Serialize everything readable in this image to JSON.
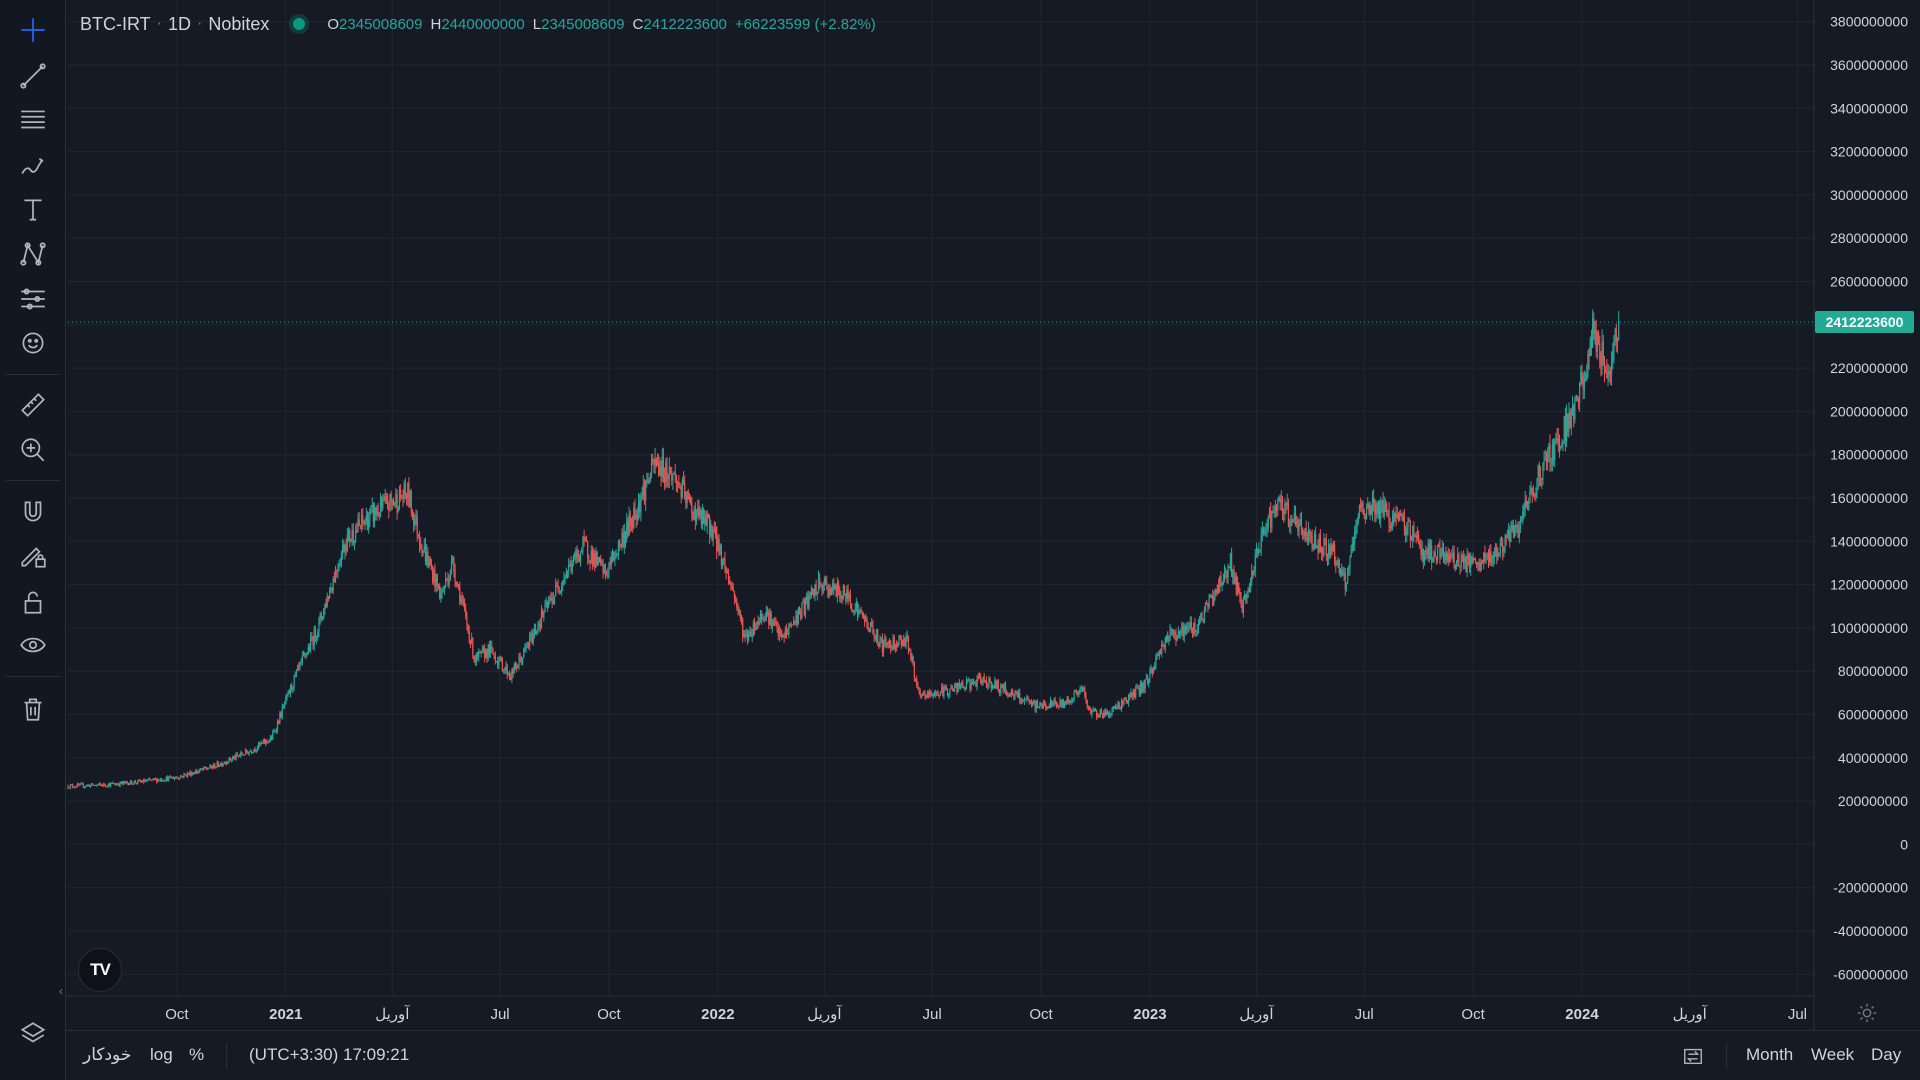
{
  "symbol": "BTC-IRT",
  "interval": "1D",
  "exchange": "Nobitex",
  "ohlc": {
    "o_label": "O",
    "o": "2345008609",
    "h_label": "H",
    "h": "2440000000",
    "l_label": "L",
    "l": "2345008609",
    "c_label": "C",
    "c": "2412223600",
    "change": "+66223599 (+2.82%)"
  },
  "last_price": "2412223600",
  "colors": {
    "background": "#161a25",
    "up": "#26a69a",
    "down": "#ef5350",
    "accent": "#2962ff",
    "price_tag": "#22ab94"
  },
  "toolbar": {
    "tools": [
      "crosshair-icon",
      "trend-line-icon",
      "fib-retracement-icon",
      "brush-icon",
      "text-icon",
      "pattern-icon",
      "prediction-icon",
      "emoji-icon",
      "ruler-icon",
      "zoom-in-icon",
      "magnet-icon",
      "lock-drawing-icon",
      "lock-icon",
      "eye-icon",
      "trash-icon",
      "layers-icon"
    ],
    "active": "crosshair-icon"
  },
  "bottom_bar": {
    "auto": "خودکار",
    "log": "log",
    "percent": "%",
    "time": "(UTC+3:30) 17:09:21",
    "ranges": [
      "Month",
      "Week",
      "Day"
    ]
  },
  "logo_text": "TV",
  "chart_data": {
    "type": "candlestick",
    "symbol": "BTC-IRT",
    "interval": "1D",
    "y_axis": {
      "ticks": [
        "3800000000",
        "3600000000",
        "3400000000",
        "3200000000",
        "3000000000",
        "2800000000",
        "2600000000",
        "2400000000",
        "2200000000",
        "2000000000",
        "1800000000",
        "1600000000",
        "1400000000",
        "1200000000",
        "1000000000",
        "800000000",
        "600000000",
        "400000000",
        "200000000",
        "0",
        "-200000000",
        "-400000000",
        "-600000000"
      ],
      "tick_values": [
        3800000000,
        3600000000,
        3400000000,
        3200000000,
        3000000000,
        2800000000,
        2600000000,
        2400000000,
        2200000000,
        2000000000,
        1800000000,
        1600000000,
        1400000000,
        1200000000,
        1000000000,
        800000000,
        600000000,
        400000000,
        200000000,
        0,
        -200000000,
        -400000000,
        -600000000
      ],
      "range": [
        -700000000,
        3900000000
      ]
    },
    "x_axis": {
      "tick_labels": [
        "Oct",
        "2021",
        "آوریل",
        "Jul",
        "Oct",
        "2022",
        "آوریل",
        "Jul",
        "Oct",
        "2023",
        "آوریل",
        "Jul",
        "Oct",
        "2024",
        "آوریل",
        "Jul"
      ],
      "tick_dates": [
        "2020-10-01",
        "2021-01-01",
        "2021-04-01",
        "2021-07-01",
        "2021-10-01",
        "2022-01-01",
        "2022-04-01",
        "2022-07-01",
        "2022-10-01",
        "2023-01-01",
        "2023-04-01",
        "2023-07-01",
        "2023-10-01",
        "2024-01-01",
        "2024-04-01",
        "2024-07-01"
      ],
      "bold_labels": [
        "2021",
        "2022",
        "2023",
        "2024"
      ],
      "range": [
        "2020-07-01",
        "2024-07-15"
      ]
    },
    "price_trajectory": {
      "dates": [
        "2020-07-01",
        "2020-08-01",
        "2020-09-01",
        "2020-10-01",
        "2020-11-01",
        "2020-12-01",
        "2020-12-20",
        "2021-01-08",
        "2021-01-28",
        "2021-02-20",
        "2021-03-10",
        "2021-03-25",
        "2021-04-14",
        "2021-04-25",
        "2021-05-12",
        "2021-05-22",
        "2021-06-10",
        "2021-06-22",
        "2021-07-10",
        "2021-07-20",
        "2021-08-05",
        "2021-08-25",
        "2021-09-10",
        "2021-09-28",
        "2021-10-20",
        "2021-11-09",
        "2021-11-25",
        "2021-12-10",
        "2021-12-28",
        "2022-01-15",
        "2022-01-24",
        "2022-02-10",
        "2022-02-24",
        "2022-03-10",
        "2022-03-28",
        "2022-04-20",
        "2022-05-10",
        "2022-05-20",
        "2022-06-10",
        "2022-06-20",
        "2022-07-20",
        "2022-08-14",
        "2022-09-05",
        "2022-09-25",
        "2022-10-20",
        "2022-11-05",
        "2022-11-10",
        "2022-11-25",
        "2022-12-15",
        "2022-12-28",
        "2023-01-15",
        "2023-02-10",
        "2023-03-10",
        "2023-03-20",
        "2023-04-10",
        "2023-04-22",
        "2023-05-15",
        "2023-06-05",
        "2023-06-15",
        "2023-06-28",
        "2023-07-10",
        "2023-08-10",
        "2023-08-20",
        "2023-09-10",
        "2023-10-05",
        "2023-10-20",
        "2023-10-30",
        "2023-11-10",
        "2023-11-25",
        "2023-12-05",
        "2023-12-20",
        "2024-01-05",
        "2024-01-10",
        "2024-01-15",
        "2024-01-23",
        "2024-02-01"
      ],
      "closes": [
        270000000,
        275000000,
        290000000,
        310000000,
        360000000,
        430000000,
        490000000,
        760000000,
        1000000000,
        1400000000,
        1500000000,
        1560000000,
        1620000000,
        1400000000,
        1150000000,
        1300000000,
        850000000,
        900000000,
        780000000,
        870000000,
        1050000000,
        1250000000,
        1380000000,
        1250000000,
        1500000000,
        1760000000,
        1700000000,
        1550000000,
        1450000000,
        1150000000,
        950000000,
        1080000000,
        950000000,
        1060000000,
        1200000000,
        1150000000,
        1000000000,
        920000000,
        950000000,
        680000000,
        720000000,
        760000000,
        700000000,
        640000000,
        650000000,
        720000000,
        620000000,
        600000000,
        680000000,
        740000000,
        960000000,
        1010000000,
        1300000000,
        1080000000,
        1500000000,
        1560000000,
        1420000000,
        1350000000,
        1200000000,
        1550000000,
        1560000000,
        1450000000,
        1350000000,
        1330000000,
        1280000000,
        1350000000,
        1400000000,
        1480000000,
        1700000000,
        1800000000,
        1950000000,
        2180000000,
        2400000000,
        2280000000,
        2180000000,
        2412223600
      ]
    },
    "last_close": 2412223600,
    "grid": true
  }
}
